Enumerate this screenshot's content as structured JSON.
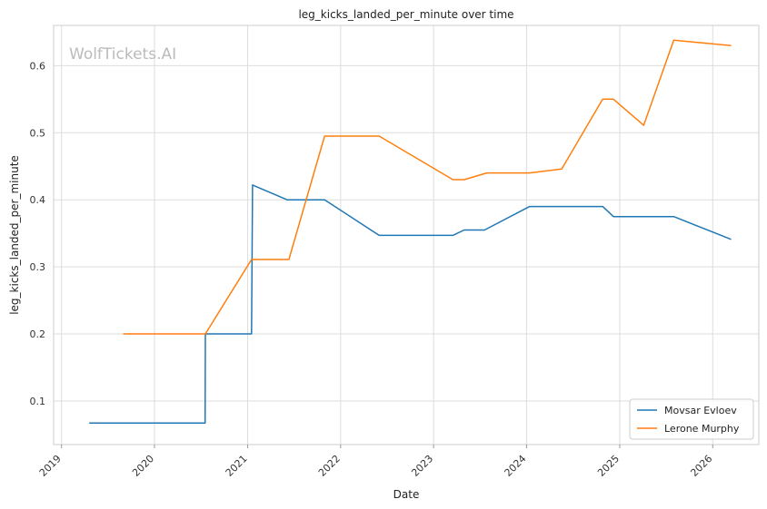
{
  "watermark": "WolfTickets.AI",
  "chart_data": {
    "type": "line",
    "title": "leg_kicks_landed_per_minute over time",
    "xlabel": "Date",
    "ylabel": "leg_kicks_landed_per_minute",
    "xlim": [
      "2018-12-01",
      "2026-07-01"
    ],
    "ylim": [
      0.035,
      0.66
    ],
    "x_ticks": [
      "2019",
      "2020",
      "2021",
      "2022",
      "2023",
      "2024",
      "2025",
      "2026"
    ],
    "y_ticks": [
      "0.1",
      "0.2",
      "0.3",
      "0.4",
      "0.5",
      "0.6"
    ],
    "grid": true,
    "legend_position": "bottom-right",
    "series": [
      {
        "name": "Movsar Evloev",
        "color": "#1f77b4",
        "x": [
          "2019-04-20",
          "2020-07-18",
          "2020-07-19",
          "2021-01-16",
          "2021-01-20",
          "2021-06-05",
          "2021-10-30",
          "2022-06-01",
          "2023-03-18",
          "2023-05-01",
          "2023-07-20",
          "2024-01-13",
          "2024-10-26",
          "2024-12-07",
          "2025-08-01",
          "2026-03-14"
        ],
        "y": [
          0.067,
          0.067,
          0.2,
          0.2,
          0.422,
          0.4,
          0.4,
          0.347,
          0.347,
          0.355,
          0.355,
          0.39,
          0.39,
          0.375,
          0.375,
          0.341
        ]
      },
      {
        "name": "Lerone Murphy",
        "color": "#ff7f0e",
        "x": [
          "2019-08-31",
          "2020-07-19",
          "2021-01-16",
          "2021-06-12",
          "2021-10-30",
          "2022-06-01",
          "2023-03-18",
          "2023-05-01",
          "2023-07-29",
          "2024-01-13",
          "2024-05-18",
          "2024-10-26",
          "2024-12-07",
          "2025-04-05",
          "2025-08-01",
          "2026-03-14"
        ],
        "y": [
          0.2,
          0.2,
          0.311,
          0.311,
          0.495,
          0.495,
          0.43,
          0.43,
          0.44,
          0.44,
          0.446,
          0.55,
          0.55,
          0.511,
          0.638,
          0.63
        ]
      }
    ]
  }
}
